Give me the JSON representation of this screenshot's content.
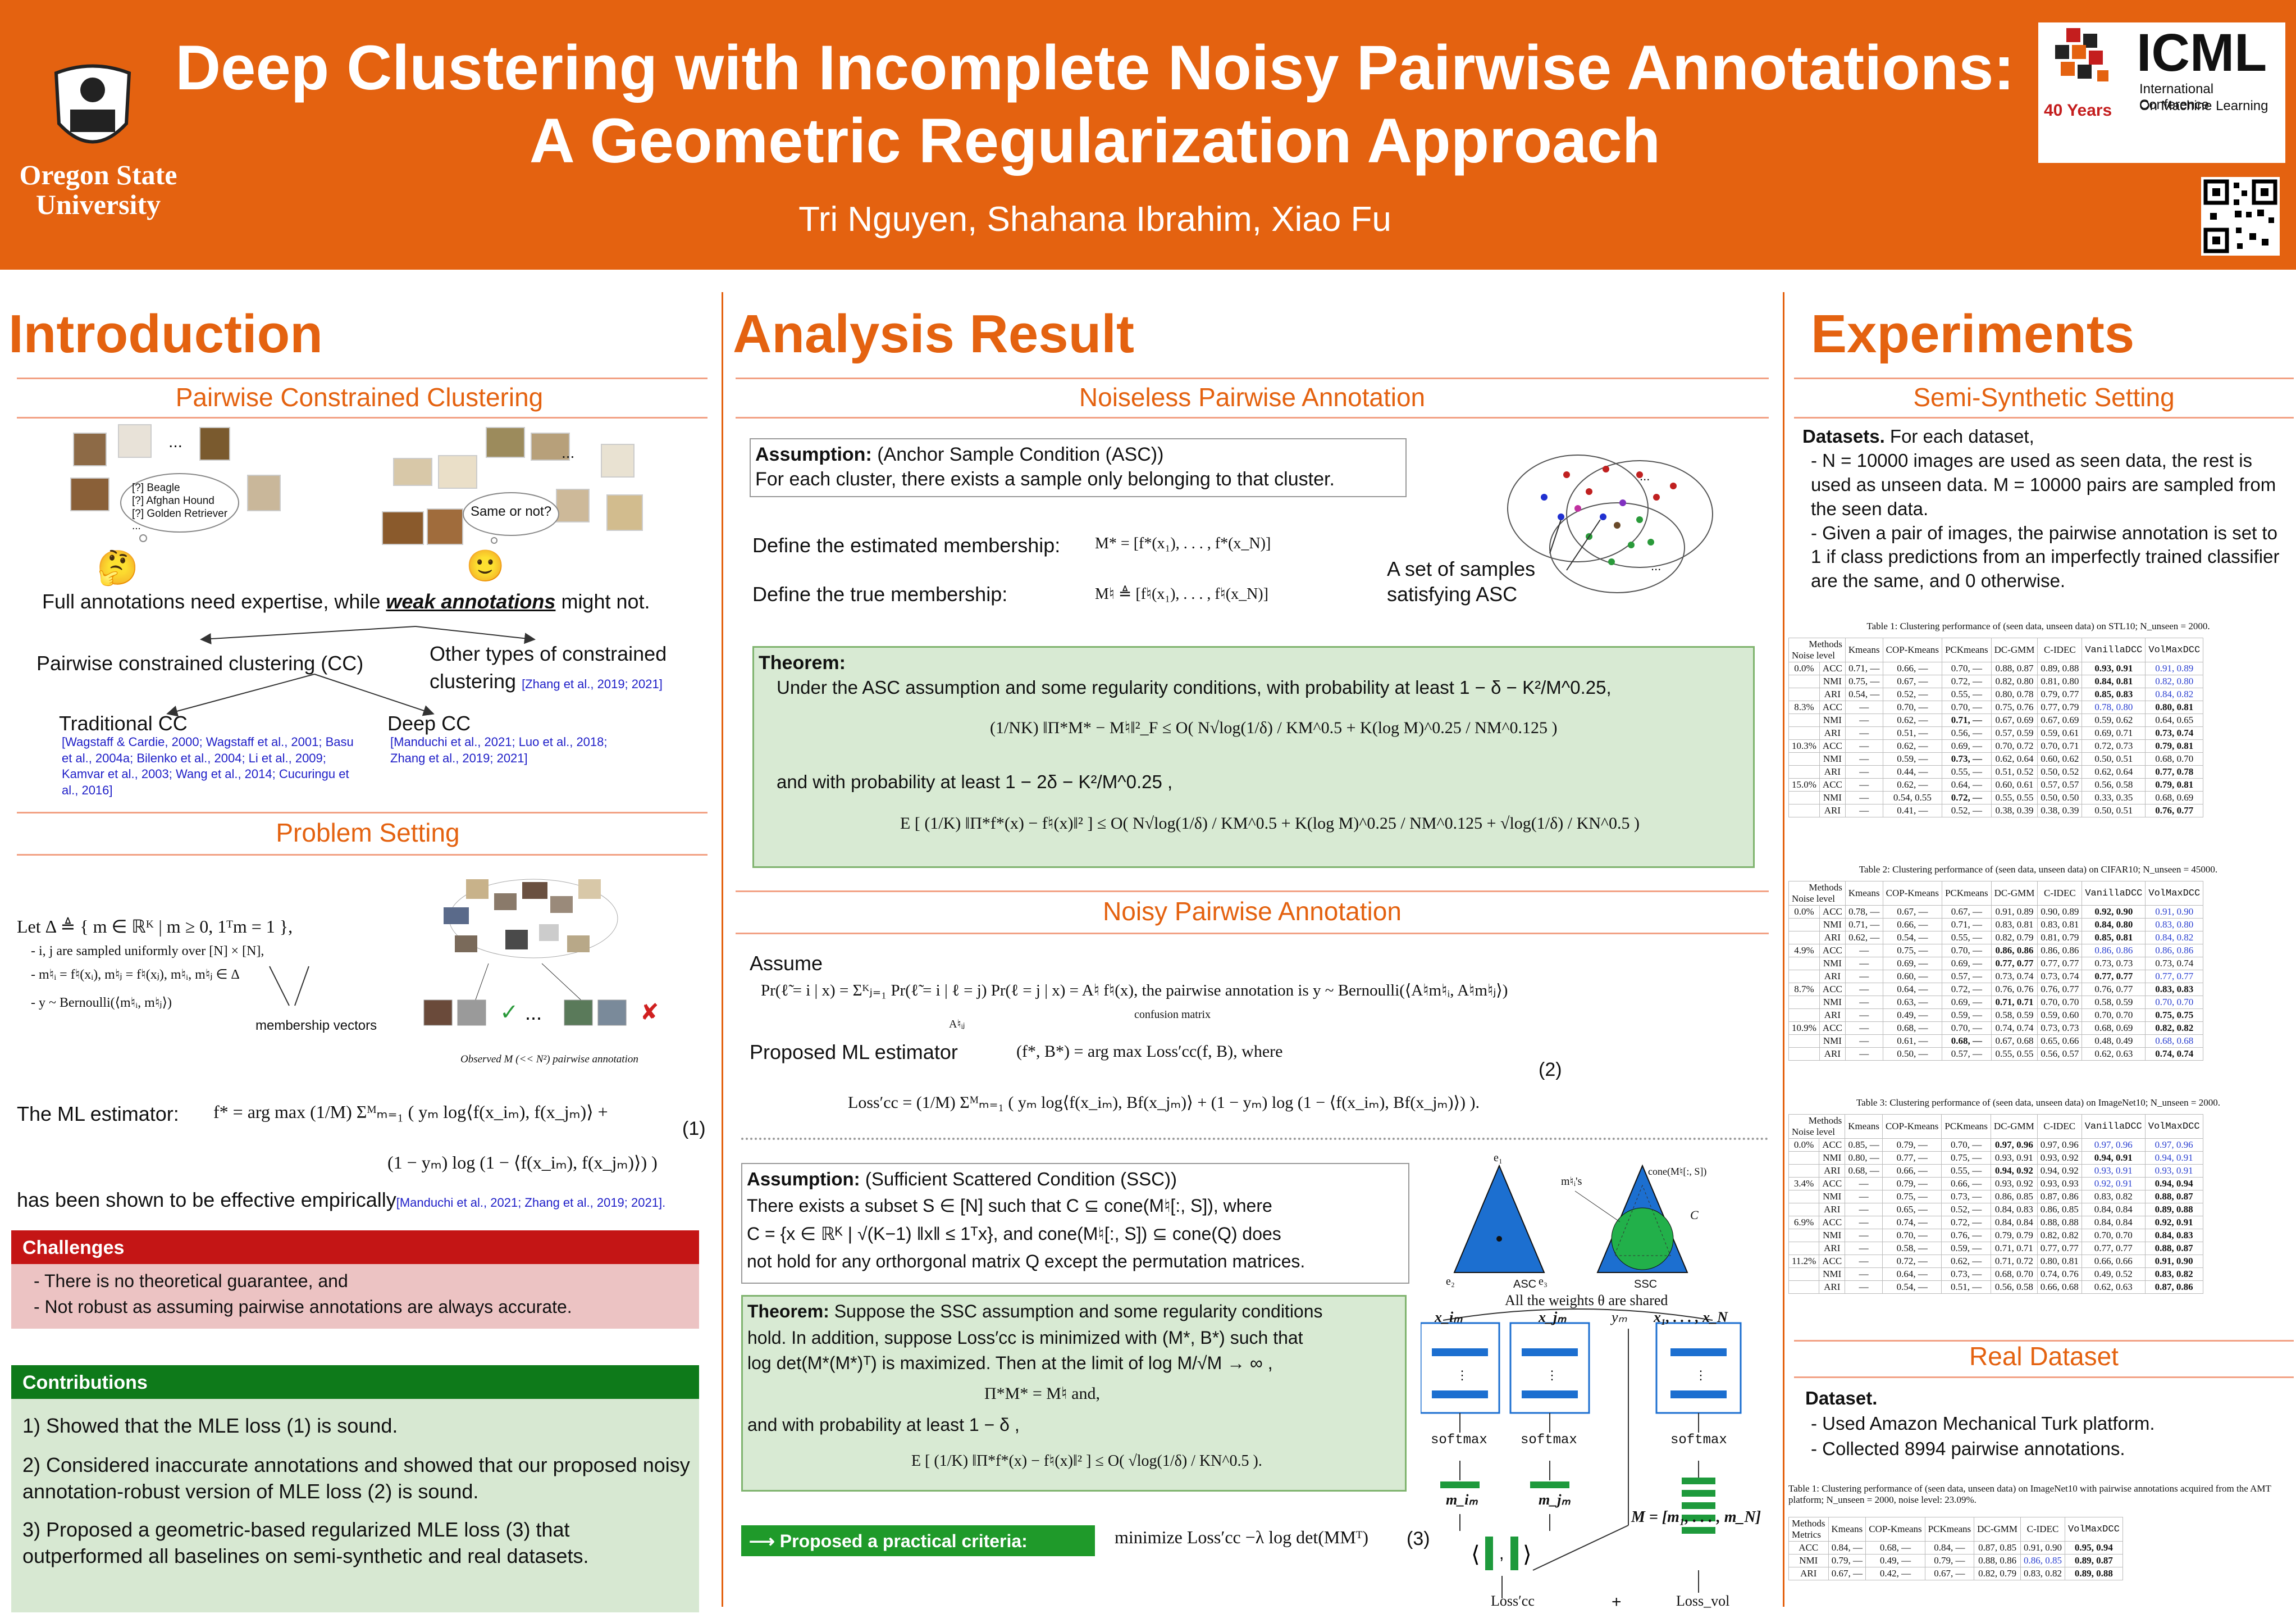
{
  "header": {
    "title_line1": "Deep Clustering with Incomplete Noisy Pairwise Annotations:",
    "title_line2": "A Geometric Regularization Approach",
    "authors": "Tri Nguyen, Shahana Ibrahim, Xiao Fu",
    "osu_line1": "Oregon State",
    "osu_line2": "University",
    "icml": "ICML",
    "icml_sub1": "International Conference",
    "icml_sub2": "On Machine Learning",
    "years": "40 Years"
  },
  "intro": {
    "heading": "Introduction",
    "pcc": "Pairwise Constrained Clustering",
    "bubble": [
      "[?] Beagle",
      "[?] Afghan Hound",
      "[?] Golden Retriever",
      "..."
    ],
    "same_or_not": "Same or not?",
    "full_annot_pre": "Full annotations need expertise, while ",
    "weak": "weak annotations",
    "full_annot_post": " might not.",
    "pcc_label": "Pairwise constrained clustering (CC)",
    "other_label": "Other types of constrained clustering",
    "other_cite": "[Zhang et al., 2019; 2021]",
    "trad": "Traditional CC",
    "trad_cite": "[Wagstaff & Cardie, 2000; Wagstaff et al., 2001; Basu et al., 2004a; Bilenko et al., 2004; Li et al., 2009; Kamvar et al., 2003; Wang et al., 2014; Cucuringu et al., 2016]",
    "deep": "Deep CC",
    "deep_cite": "[Manduchi et al., 2021; Luo et al., 2018; Zhang et al., 2019; 2021]",
    "problem": "Problem Setting",
    "let": "Let Δ ≜ { m ∈ ℝᴷ | m ≥ 0, 1ᵀm = 1 },",
    "b1": "- i, j are sampled uniformly over [N] × [N],",
    "b2": "- m♮ᵢ = f♮(xᵢ),   m♮ⱼ = f♮(xⱼ),   m♮ᵢ, m♮ⱼ ∈ Δ",
    "b3": "- y ~ Bernoulli(⟨m♮ᵢ, m♮ⱼ⟩)",
    "membership": "membership vectors",
    "observed": "Observed M (<< N²) pairwise annotation",
    "ml_label": "The ML estimator:",
    "ml_eq1": "f* = arg max (1/M) Σᴹₘ₌₁ ( yₘ log⟨f(x_iₘ), f(x_jₘ)⟩ +",
    "ml_eq2": "(1 − yₘ) log (1 − ⟨f(x_iₘ), f(x_jₘ)⟩) )",
    "eq1": "(1)",
    "shown": "has been shown to be effective empirically",
    "shown_cite": "[Manduchi et al., 2021;  Zhang et al., 2019; 2021].",
    "challenges": "Challenges",
    "ch1": "- There is no theoretical guarantee, and",
    "ch2": "- Not robust as assuming pairwise annotations are always accurate.",
    "contrib": "Contributions",
    "c1": "1) Showed that the MLE loss (1) is sound.",
    "c2": "2) Considered inaccurate annotations and showed that our proposed noisy annotation-robust version of MLE loss (2) is sound.",
    "c3": "3) Proposed a geometric-based regularized MLE loss (3) that outperformed all baselines on semi-synthetic and real datasets."
  },
  "analysis": {
    "heading": "Analysis Result",
    "noiseless": "Noiseless Pairwise Annotation",
    "asc_title": "Assumption:",
    "asc_title2": " (Anchor Sample Condition (ASC))",
    "asc_body": "For each cluster, there exists a sample only belonging to that cluster.",
    "def_est": "Define the estimated membership:",
    "def_est_eq": "M* = [f*(x₁), . . . , f*(x_N)]",
    "def_true": "Define the true membership:",
    "def_true_eq": "M♮ ≜ [f♮(x₁), . . . , f♮(x_N)]",
    "asc_caption1": "A set of samples",
    "asc_caption2": "satisfying ASC",
    "thm": "Theorem:",
    "thm_l1": "Under the ASC assumption and some regularity conditions, with probability at least 1 − δ − K²/M^0.25,",
    "thm_eq1": "(1/NK) ‖Π*M* − M♮‖²_F ≤ O( N√log(1/δ) / KM^0.5 + K(log M)^0.25 / NM^0.125 )",
    "thm_l2": "and with probability at least 1 − 2δ − K²/M^0.25 ,",
    "thm_eq2": "E [ (1/K) ‖Π*f*(x) − f♮(x)‖² ] ≤ O( N√log(1/δ) / KM^0.5 + K(log M)^0.25 / NM^0.125 + √log(1/δ) / KN^0.5 )",
    "noisy": "Noisy Pairwise Annotation",
    "assume": "Assume",
    "assume_eq": "Pr(ℓ̃ = i | x) = Σᴷⱼ₌₁ Pr(ℓ̃ = i | ℓ = j) Pr(ℓ = j | x) = A♮ f♮(x), the pairwise annotation is y ~ Bernoulli(⟨A♮m♮ᵢ, A♮m♮ⱼ⟩)",
    "confusion": "confusion matrix",
    "aij": "A♮ᵢⱼ",
    "pml": "Proposed ML estimator",
    "pml_eq": "(f*, B*) = arg max Loss′cc(f, B),    where",
    "eq2": "(2)",
    "loss_eq": "Loss′cc = (1/M) Σᴹₘ₌₁ ( yₘ log⟨f(x_iₘ), Bf(x_jₘ)⟩ + (1 − yₘ) log (1 − ⟨f(x_iₘ), Bf(x_jₘ)⟩) ).",
    "ssc_title": "Assumption:",
    "ssc_title2": " (Sufficient Scattered Condition (SSC))",
    "ssc_l1": "There exists a subset  S ∈ [N]  such that    C ⊆ cone(M♮[:, S]),     where",
    "ssc_l2": "C = {x ∈ ℝᴷ | √(K−1) ‖x‖ ≤ 1ᵀx}, and cone(M♮[:, S]) ⊆ cone(Q)  does",
    "ssc_l3": "not hold for any orthorgonal matrix Q except the permutation matrices.",
    "asc_lbl": "ASC",
    "ssc_lbl": "SSC",
    "thm2_title": "Theorem:",
    "thm2_l1": " Suppose the SSC assumption and some regularity conditions",
    "thm2_l2": "hold. In addition, suppose  Loss′cc  is minimized with   (M*, B*)  such    that",
    "thm2_l3": "log det(M*(M*)ᵀ)  is maximized. Then at the limit of  log M/√M → ∞  ,",
    "thm2_l4": "Π*M* = M♮  and,",
    "thm2_l5": "and with probability at least 1 − δ ,",
    "thm2_eq": "E [ (1/K) ‖Π*f*(x) − f♮(x)‖² ] ≤ O( √log(1/δ) / KN^0.5 ).",
    "shared": "All the weights θ are shared",
    "softmax": "softmax",
    "xim": "x_iₘ",
    "xjm": "x_jₘ",
    "ym": "yₘ",
    "xall": "x₁, . . . , x_N",
    "mim": "m_iₘ",
    "mjm": "m_jₘ",
    "mall": "M = [m₁, . . . , m_N]",
    "criteria": "⟶ Proposed a practical criteria:",
    "minimize": "minimize  Loss′cc −λ log det(MMᵀ)",
    "eq3": "(3)",
    "loss_cc": "Loss′cc",
    "loss_vol": "Loss_vol",
    "plus": "+",
    "cone_lbl": "cone(M♮[:, S])",
    "c_lbl": "C",
    "mi_lbl": "m♮ᵢ's",
    "e1": "e₁",
    "e2": "e₂",
    "e3": "e₃"
  },
  "experiments": {
    "heading": "Experiments",
    "semi": "Semi-Synthetic Setting",
    "datasets": "Datasets.",
    "datasets_rest": " For each dataset,",
    "d1": "- N = 10000 images are used as seen data, the rest is used as unseen data. M = 10000 pairs are sampled from the seen data.",
    "d2": "- Given a pair of images, the pairwise annotation is set to 1 if class predictions from an imperfectly trained classifier are the same, and 0 otherwise.",
    "real": "Real Dataset",
    "dataset": "Dataset.",
    "r1": "- Used Amazon Mechanical Turk platform.",
    "r2": "- Collected 8994 pairwise annotations."
  },
  "tables": [
    {
      "caption": "Table 1: Clustering performance of (seen data, unseen data) on STL10; N_unseen = 2000.",
      "methods": [
        "Kmeans",
        "COP-Kmeans",
        "PCKmeans",
        "DC-GMM",
        "C-IDEC",
        "VanillaDCC",
        "VolMaxDCC"
      ],
      "rows": [
        [
          "0.0%",
          "ACC",
          "0.71, —",
          "0.66, —",
          "0.70, —",
          "0.88, 0.87",
          "0.89, 0.88",
          "0.93, 0.91",
          "0.91, 0.89"
        ],
        [
          "",
          "NMI",
          "0.75, —",
          "0.67, —",
          "0.72, —",
          "0.82, 0.80",
          "0.81, 0.80",
          "0.84, 0.81",
          "0.82, 0.80"
        ],
        [
          "",
          "ARI",
          "0.54, —",
          "0.52, —",
          "0.55, —",
          "0.80, 0.78",
          "0.79, 0.77",
          "0.85, 0.83",
          "0.84, 0.82"
        ],
        [
          "8.3%",
          "ACC",
          "—",
          "0.70, —",
          "0.70, —",
          "0.75, 0.76",
          "0.77, 0.79",
          "0.78, 0.80",
          "0.80, 0.81"
        ],
        [
          "",
          "NMI",
          "—",
          "0.62, —",
          "0.71, —",
          "0.67, 0.69",
          "0.67, 0.69",
          "0.59, 0.62",
          "0.64, 0.65"
        ],
        [
          "",
          "ARI",
          "—",
          "0.51, —",
          "0.56, —",
          "0.57, 0.59",
          "0.59, 0.61",
          "0.69, 0.71",
          "0.73, 0.74"
        ],
        [
          "10.3%",
          "ACC",
          "—",
          "0.62, —",
          "0.69, —",
          "0.70, 0.72",
          "0.70, 0.71",
          "0.72, 0.73",
          "0.79, 0.81"
        ],
        [
          "",
          "NMI",
          "—",
          "0.59, —",
          "0.73, —",
          "0.62, 0.64",
          "0.60, 0.62",
          "0.50, 0.51",
          "0.68, 0.70"
        ],
        [
          "",
          "ARI",
          "—",
          "0.44, —",
          "0.55, —",
          "0.51, 0.52",
          "0.50, 0.52",
          "0.62, 0.64",
          "0.77, 0.78"
        ],
        [
          "15.0%",
          "ACC",
          "—",
          "0.62, —",
          "0.64, —",
          "0.60, 0.61",
          "0.57, 0.57",
          "0.56, 0.58",
          "0.79, 0.81"
        ],
        [
          "",
          "NMI",
          "—",
          "0.54, 0.55",
          "0.72, —",
          "0.55, 0.55",
          "0.50, 0.50",
          "0.33, 0.35",
          "0.68, 0.69"
        ],
        [
          "",
          "ARI",
          "—",
          "0.41, —",
          "0.52, —",
          "0.38, 0.39",
          "0.38, 0.39",
          "0.50, 0.51",
          "0.76, 0.77"
        ]
      ]
    },
    {
      "caption": "Table 2: Clustering performance of (seen data, unseen data) on CIFAR10; N_unseen = 45000.",
      "methods": [
        "Kmeans",
        "COP-Kmeans",
        "PCKmeans",
        "DC-GMM",
        "C-IDEC",
        "VanillaDCC",
        "VolMaxDCC"
      ],
      "rows": [
        [
          "0.0%",
          "ACC",
          "0.78, —",
          "0.67, —",
          "0.67, —",
          "0.91, 0.89",
          "0.90, 0.89",
          "0.92, 0.90",
          "0.91, 0.90"
        ],
        [
          "",
          "NMI",
          "0.71, —",
          "0.66, —",
          "0.71, —",
          "0.83, 0.81",
          "0.83, 0.81",
          "0.84, 0.80",
          "0.83, 0.80"
        ],
        [
          "",
          "ARI",
          "0.62, —",
          "0.54, —",
          "0.55, —",
          "0.82, 0.79",
          "0.81, 0.79",
          "0.85, 0.81",
          "0.84, 0.82"
        ],
        [
          "4.9%",
          "ACC",
          "—",
          "0.75, —",
          "0.70, —",
          "0.86, 0.86",
          "0.86, 0.86",
          "0.86, 0.86",
          "0.86, 0.86"
        ],
        [
          "",
          "NMI",
          "—",
          "0.69, —",
          "0.69, —",
          "0.77, 0.77",
          "0.77, 0.77",
          "0.73, 0.73",
          "0.73, 0.74"
        ],
        [
          "",
          "ARI",
          "—",
          "0.60, —",
          "0.57, —",
          "0.73, 0.74",
          "0.73, 0.74",
          "0.77, 0.77",
          "0.77, 0.77"
        ],
        [
          "8.7%",
          "ACC",
          "—",
          "0.64, —",
          "0.72, —",
          "0.76, 0.76",
          "0.76, 0.77",
          "0.76, 0.77",
          "0.83, 0.83"
        ],
        [
          "",
          "NMI",
          "—",
          "0.63, —",
          "0.69, —",
          "0.71, 0.71",
          "0.70, 0.70",
          "0.58, 0.59",
          "0.70, 0.70"
        ],
        [
          "",
          "ARI",
          "—",
          "0.49, —",
          "0.59, —",
          "0.58, 0.59",
          "0.59, 0.60",
          "0.70, 0.70",
          "0.75, 0.75"
        ],
        [
          "10.9%",
          "ACC",
          "—",
          "0.68, —",
          "0.70, —",
          "0.74, 0.74",
          "0.73, 0.73",
          "0.68, 0.69",
          "0.82, 0.82"
        ],
        [
          "",
          "NMI",
          "—",
          "0.61, —",
          "0.68, —",
          "0.67, 0.68",
          "0.65, 0.66",
          "0.48, 0.49",
          "0.68, 0.68"
        ],
        [
          "",
          "ARI",
          "—",
          "0.50, —",
          "0.57, —",
          "0.55, 0.55",
          "0.56, 0.57",
          "0.62, 0.63",
          "0.74, 0.74"
        ]
      ]
    },
    {
      "caption": "Table 3: Clustering performance of (seen data, unseen data) on ImageNet10; N_unseen = 2000.",
      "methods": [
        "Kmeans",
        "COP-Kmeans",
        "PCKmeans",
        "DC-GMM",
        "C-IDEC",
        "VanillaDCC",
        "VolMaxDCC"
      ],
      "rows": [
        [
          "0.0%",
          "ACC",
          "0.85, —",
          "0.79, —",
          "0.70, —",
          "0.97, 0.96",
          "0.97, 0.96",
          "0.97, 0.96",
          "0.97, 0.96"
        ],
        [
          "",
          "NMI",
          "0.80, —",
          "0.77, —",
          "0.75, —",
          "0.93, 0.91",
          "0.93, 0.92",
          "0.94, 0.91",
          "0.94, 0.91"
        ],
        [
          "",
          "ARI",
          "0.68, —",
          "0.66, —",
          "0.55, —",
          "0.94, 0.92",
          "0.94, 0.92",
          "0.93, 0.91",
          "0.93, 0.91"
        ],
        [
          "3.4%",
          "ACC",
          "—",
          "0.79, —",
          "0.66, —",
          "0.93, 0.92",
          "0.93, 0.93",
          "0.92, 0.91",
          "0.94, 0.94"
        ],
        [
          "",
          "NMI",
          "—",
          "0.75, —",
          "0.73, —",
          "0.86, 0.85",
          "0.87, 0.86",
          "0.83, 0.82",
          "0.88, 0.87"
        ],
        [
          "",
          "ARI",
          "—",
          "0.65, —",
          "0.52, —",
          "0.84, 0.83",
          "0.86, 0.85",
          "0.84, 0.84",
          "0.89, 0.88"
        ],
        [
          "6.9%",
          "ACC",
          "—",
          "0.74, —",
          "0.72, —",
          "0.84, 0.84",
          "0.88, 0.88",
          "0.84, 0.84",
          "0.92, 0.91"
        ],
        [
          "",
          "NMI",
          "—",
          "0.70, —",
          "0.76, —",
          "0.79, 0.79",
          "0.82, 0.82",
          "0.70, 0.70",
          "0.84, 0.83"
        ],
        [
          "",
          "ARI",
          "—",
          "0.58, —",
          "0.59, —",
          "0.71, 0.71",
          "0.77, 0.77",
          "0.77, 0.77",
          "0.88, 0.87"
        ],
        [
          "11.2%",
          "ACC",
          "—",
          "0.72, —",
          "0.62, —",
          "0.71, 0.72",
          "0.80, 0.81",
          "0.66, 0.66",
          "0.91, 0.90"
        ],
        [
          "",
          "NMI",
          "—",
          "0.64, —",
          "0.73, —",
          "0.68, 0.70",
          "0.74, 0.76",
          "0.49, 0.52",
          "0.83, 0.82"
        ],
        [
          "",
          "ARI",
          "—",
          "0.54, —",
          "0.51, —",
          "0.56, 0.58",
          "0.66, 0.68",
          "0.62, 0.63",
          "0.87, 0.86"
        ]
      ]
    },
    {
      "caption": "Table 1: Clustering performance of (seen data, unseen data) on ImageNet10 with pairwise annotations acquired from the AMT platform; N_unseen = 2000, noise level: 23.09%.",
      "methods": [
        "Kmeans",
        "COP-Kmeans",
        "PCKmeans",
        "DC-GMM",
        "C-IDEC",
        "VolMaxDCC"
      ],
      "rows": [
        [
          "ACC",
          "0.84, —",
          "0.68, —",
          "0.84, —",
          "0.87, 0.85",
          "0.91, 0.90",
          "0.95, 0.94"
        ],
        [
          "NMI",
          "0.79, —",
          "0.49, —",
          "0.79, —",
          "0.88, 0.86",
          "0.86, 0.85",
          "0.89, 0.87"
        ],
        [
          "ARI",
          "0.67, —",
          "0.42, —",
          "0.67, —",
          "0.82, 0.79",
          "0.83, 0.82",
          "0.89, 0.88"
        ]
      ]
    }
  ],
  "labels": {
    "methods": "Methods",
    "noise": "Noise level",
    "metrics": "Metrics"
  },
  "qr": "QR code"
}
